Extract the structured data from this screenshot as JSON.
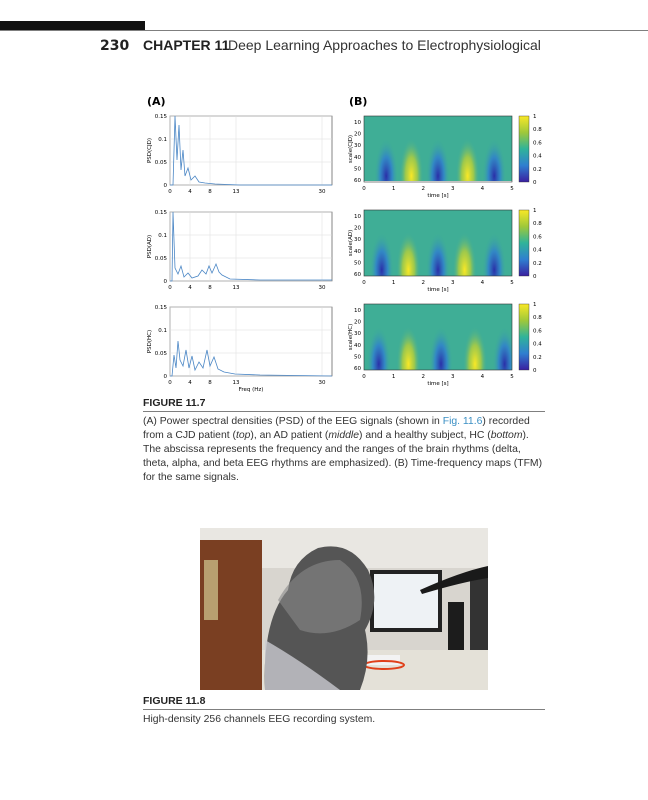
{
  "header": {
    "page_number": "230",
    "chapter": "CHAPTER 11",
    "title": "Deep Learning Approaches to Electrophysiological"
  },
  "figure_11_7": {
    "panel_labels": [
      "(A)",
      "(B)"
    ],
    "psd_plots": [
      {
        "ylabel": "PSD(CJD)",
        "yticks": [
          "0.15",
          "0.1",
          "0.05",
          "0"
        ]
      },
      {
        "ylabel": "PSD(AD)",
        "yticks": [
          "0.15",
          "0.1",
          "0.05",
          "0"
        ]
      },
      {
        "ylabel": "PSD(HC)",
        "yticks": [
          "0.15",
          "0.1",
          "0.05",
          "0"
        ]
      }
    ],
    "psd_xticks": [
      "0",
      "4",
      "8",
      "13",
      "30"
    ],
    "psd_xlabel": "Freq (Hz)",
    "tfm_plots": [
      {
        "ylabel": "scale(CJD)"
      },
      {
        "ylabel": "scale(AD)"
      },
      {
        "ylabel": "scale(HC)"
      }
    ],
    "tfm_yticks": [
      "10",
      "20",
      "30",
      "40",
      "50",
      "60"
    ],
    "tfm_xticks": [
      "0",
      "1",
      "2",
      "3",
      "4",
      "5"
    ],
    "tfm_xlabel": "time [s]",
    "colorbar_ticks": [
      "1",
      "0.8",
      "0.6",
      "0.4",
      "0.2",
      "0"
    ],
    "caption_label": "FIGURE 11.7",
    "caption": [
      "(A) Power spectral densities (PSD) of the EEG signals (shown in ",
      "Fig. 11.6",
      ") recorded from a CJD patient (",
      "top",
      "), an AD patient (",
      "middle",
      ") and a healthy subject, HC (",
      "bottom",
      "). The abscissa represents the frequency and the ranges of the brain rhythms (delta, theta, alpha, and beta EEG rhythms are emphasized). (B) Time-frequency maps (TFM) for the same signals."
    ]
  },
  "figure_11_8": {
    "caption_label": "FIGURE 11.8",
    "caption": "High-density 256 channels EEG recording system."
  }
}
